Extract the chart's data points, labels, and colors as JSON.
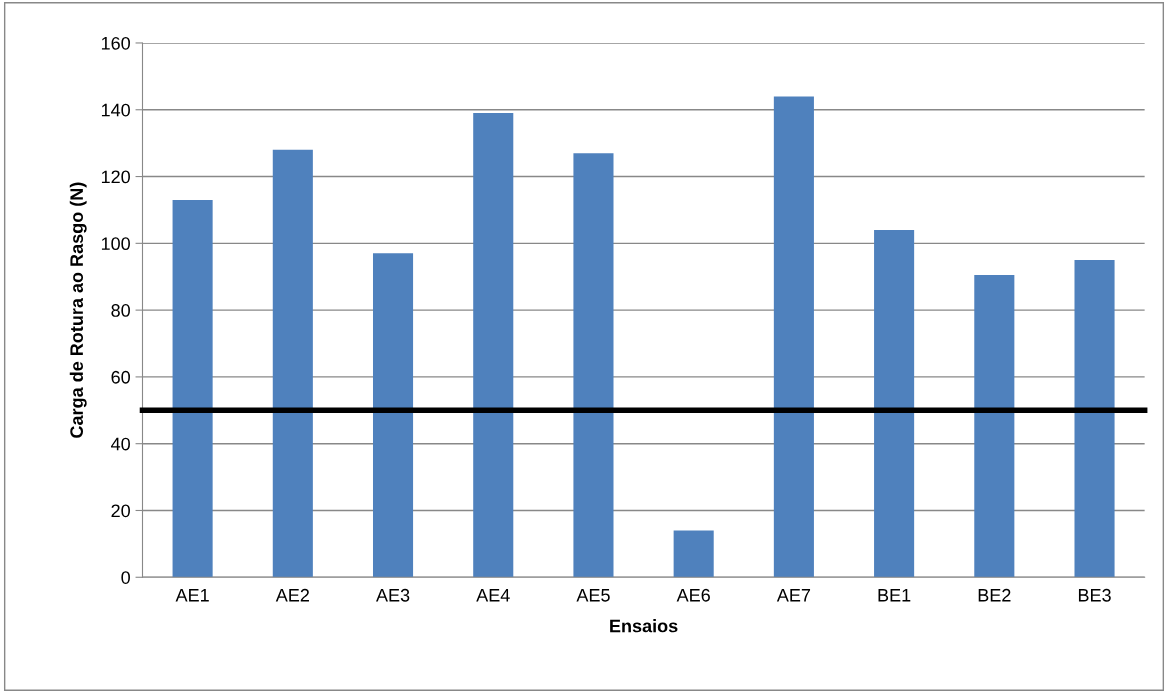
{
  "chart_data": {
    "type": "bar",
    "xlabel": "Ensaios",
    "ylabel": "Carga de Rotura ao Rasgo (N)",
    "categories": [
      "AE1",
      "AE2",
      "AE3",
      "AE4",
      "AE5",
      "AE6",
      "AE7",
      "BE1",
      "BE2",
      "BE3"
    ],
    "values": [
      113,
      128,
      97,
      139,
      127,
      14,
      144,
      104,
      90.5,
      95
    ],
    "color": "#4f81bd",
    "ylim": [
      0,
      160
    ],
    "yticks": [
      0,
      20,
      40,
      60,
      80,
      100,
      120,
      140,
      160
    ],
    "grid": "y",
    "ref_lines": [
      {
        "axis": "y",
        "value": 50,
        "color": "#000000",
        "line_style": "solid"
      }
    ]
  }
}
